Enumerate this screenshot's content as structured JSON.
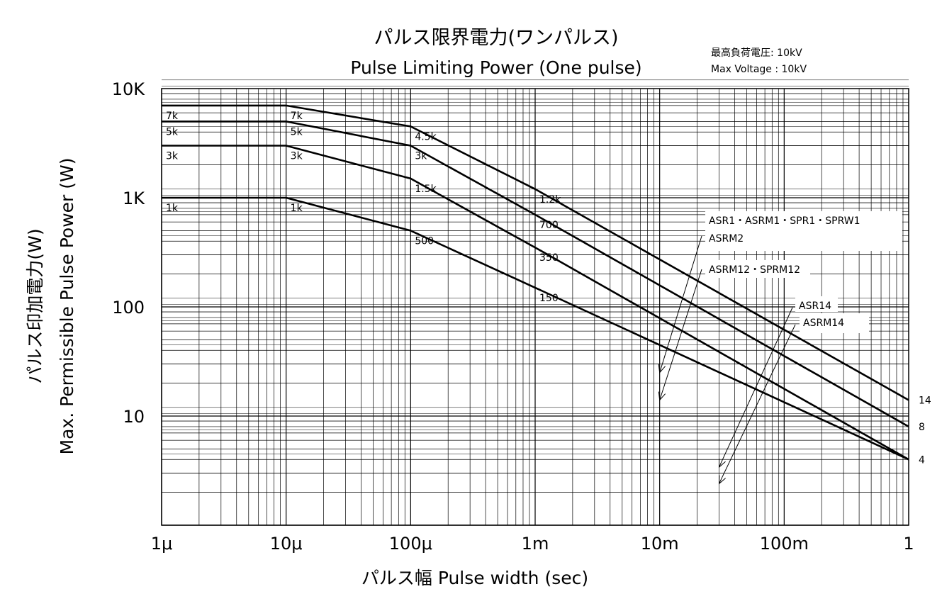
{
  "chart_data": {
    "type": "line",
    "title_jp": "パルス限界電力(ワンパルス)",
    "title_en": "Pulse Limiting Power (One pulse)",
    "note": {
      "line1": "最高負荷電圧:  10kV",
      "line2": "Max Voltage : 10kV"
    },
    "ylabel_jp": "パルス印加電力(W)",
    "ylabel_en": "Max. Permissible Pulse Power (W)",
    "xlabel": "パルス幅  Pulse width (sec)",
    "xscale": "log",
    "yscale": "log",
    "xlim": [
      1e-06,
      1
    ],
    "ylim": [
      1,
      10000
    ],
    "grid": true,
    "x_ticks": [
      {
        "value": 1e-06,
        "label": "1μ"
      },
      {
        "value": 1e-05,
        "label": "10μ"
      },
      {
        "value": 0.0001,
        "label": "100μ"
      },
      {
        "value": 0.001,
        "label": "1m"
      },
      {
        "value": 0.01,
        "label": "10m"
      },
      {
        "value": 0.1,
        "label": "100m"
      },
      {
        "value": 1,
        "label": "1"
      }
    ],
    "y_ticks": [
      {
        "value": 10000,
        "label": "10K"
      },
      {
        "value": 1000,
        "label": "1K"
      },
      {
        "value": 100,
        "label": "100"
      },
      {
        "value": 10,
        "label": "10"
      }
    ],
    "series": [
      {
        "name": "ASR1・ASRM1・SPR1・SPRW1 / ASRM2",
        "end_label": "14",
        "points": [
          [
            1e-06,
            7000
          ],
          [
            1e-05,
            7000
          ],
          [
            0.0001,
            4500
          ],
          [
            0.001,
            1200
          ],
          [
            1,
            14
          ]
        ]
      },
      {
        "name": "ASRM12・SPRM12",
        "end_label": "8",
        "points": [
          [
            1e-06,
            5000
          ],
          [
            1e-05,
            5000
          ],
          [
            0.0001,
            3000
          ],
          [
            0.001,
            700
          ],
          [
            1,
            8
          ]
        ]
      },
      {
        "name": "ASR14",
        "end_label": "4",
        "points": [
          [
            1e-06,
            3000
          ],
          [
            1e-05,
            3000
          ],
          [
            0.0001,
            1500
          ],
          [
            0.001,
            350
          ],
          [
            1,
            4
          ]
        ]
      },
      {
        "name": "ASRM14",
        "end_label": "4",
        "points": [
          [
            1e-06,
            1000
          ],
          [
            1e-05,
            1000
          ],
          [
            0.0001,
            500
          ],
          [
            0.001,
            150
          ],
          [
            1,
            4
          ]
        ]
      }
    ],
    "point_labels": [
      {
        "x": 1e-06,
        "y": 7000,
        "label": "7k"
      },
      {
        "x": 1e-05,
        "y": 7000,
        "label": "7k"
      },
      {
        "x": 0.0001,
        "y": 4500,
        "label": "4.5k"
      },
      {
        "x": 0.001,
        "y": 1200,
        "label": "1.2k"
      },
      {
        "x": 1e-06,
        "y": 5000,
        "label": "5k"
      },
      {
        "x": 1e-05,
        "y": 5000,
        "label": "5k"
      },
      {
        "x": 0.0001,
        "y": 3000,
        "label": "3k"
      },
      {
        "x": 0.001,
        "y": 700,
        "label": "700"
      },
      {
        "x": 1e-06,
        "y": 3000,
        "label": "3k"
      },
      {
        "x": 1e-05,
        "y": 3000,
        "label": "3k"
      },
      {
        "x": 0.0001,
        "y": 1500,
        "label": "1.5k"
      },
      {
        "x": 0.001,
        "y": 350,
        "label": "350"
      },
      {
        "x": 1e-06,
        "y": 1000,
        "label": "1k"
      },
      {
        "x": 1e-05,
        "y": 1000,
        "label": "1k"
      },
      {
        "x": 0.0001,
        "y": 500,
        "label": "500"
      },
      {
        "x": 0.001,
        "y": 150,
        "label": "150"
      }
    ],
    "legend_annotations": [
      {
        "lines": [
          "ASR1・ASRM1・SPR1・SPRW1",
          "ASRM2"
        ],
        "target_x": 0.01,
        "target_y": 25
      },
      {
        "lines": [
          "ASRM12・SPRM12"
        ],
        "target_x": 0.01,
        "target_y": 14
      },
      {
        "lines": [
          "ASR14"
        ],
        "target_x": 0.03,
        "target_y": 3.4
      },
      {
        "lines": [
          "ASRM14"
        ],
        "target_x": 0.03,
        "target_y": 2.4
      }
    ]
  }
}
